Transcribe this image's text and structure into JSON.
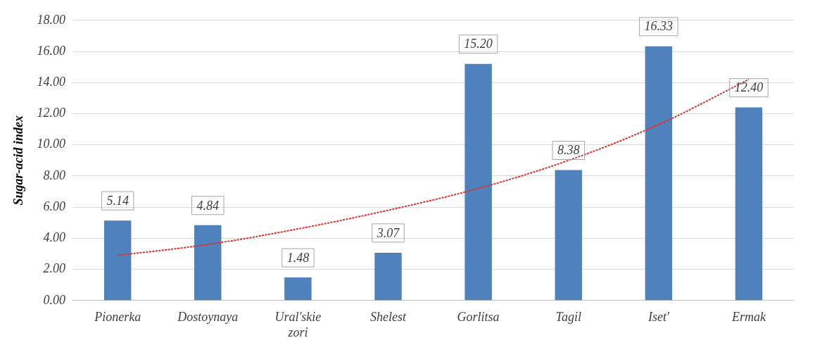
{
  "chart_data": {
    "type": "bar",
    "ylabel": "Sugar-acid index",
    "categories": [
      "Pionerka",
      "Dostoynaya",
      "Ural'skie zori",
      "Shelest",
      "Gorlitsa",
      "Tagil",
      "Iset'",
      "Ermak"
    ],
    "series": [
      {
        "color": "#4f81bd",
        "values": [
          5.14,
          4.84,
          1.48,
          3.07,
          15.2,
          8.38,
          16.33,
          12.4
        ],
        "value_labels": [
          "5.14",
          "4.84",
          "1.48",
          "3.07",
          "15.20",
          "8.38",
          "16.33",
          "12.40"
        ]
      },
      {
        "type": "line",
        "color": "#e0302a",
        "line_style": "dotted",
        "marker": "none",
        "values": [
          2.9,
          3.6,
          4.6,
          5.8,
          7.2,
          9.0,
          11.3,
          14.2
        ]
      }
    ],
    "ylim": [
      0,
      18
    ],
    "yticks": [
      {
        "value": 0,
        "label": "0.00"
      },
      {
        "value": 2,
        "label": "2.00"
      },
      {
        "value": 4,
        "label": "4.00"
      },
      {
        "value": 6,
        "label": "6.00"
      },
      {
        "value": 8,
        "label": "8.00"
      },
      {
        "value": 10,
        "label": "10.00"
      },
      {
        "value": 12,
        "label": "12.00"
      },
      {
        "value": 14,
        "label": "14.00"
      },
      {
        "value": 16,
        "label": "16.00"
      },
      {
        "value": 18,
        "label": "18.00"
      }
    ],
    "grid": "y",
    "legend": false
  }
}
